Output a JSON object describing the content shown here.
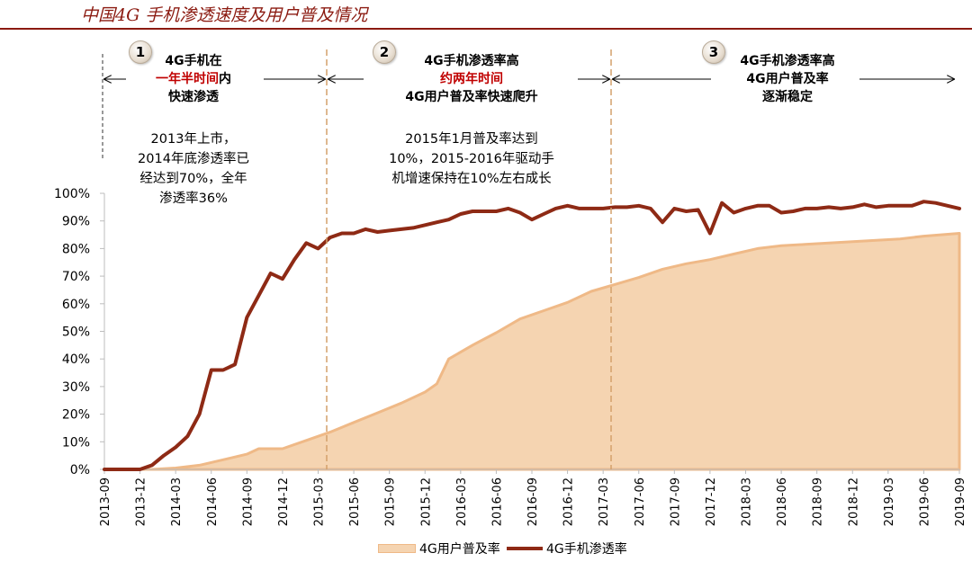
{
  "header": {
    "title": "中国4G 手机渗透速度及用户普及情况"
  },
  "phases": [
    {
      "number": "1",
      "lines": [
        [
          {
            "text": "4G手机在",
            "red": false
          }
        ],
        [
          {
            "text": "一年半时间",
            "red": true
          },
          {
            "text": "内",
            "red": false
          }
        ],
        [
          {
            "text": "快速渗透",
            "red": false
          }
        ]
      ],
      "note": [
        "2013年上市，",
        "2014年底渗透率已",
        "经达到70%，全年",
        "渗透率36%"
      ]
    },
    {
      "number": "2",
      "lines": [
        [
          {
            "text": "4G手机渗透率高",
            "red": false
          }
        ],
        [
          {
            "text": "约两年时间",
            "red": true
          }
        ],
        [
          {
            "text": "4G用户普及率快速爬升",
            "red": false
          }
        ]
      ],
      "note": [
        "2015年1月普及率达到",
        "10%，2015-2016年驱动手",
        "机增速保持在10%左右成长"
      ]
    },
    {
      "number": "3",
      "lines": [
        [
          {
            "text": "4G手机渗透率高",
            "red": false
          }
        ],
        [
          {
            "text": "4G用户普及率",
            "red": false
          }
        ],
        [
          {
            "text": "逐渐稳定",
            "red": false
          }
        ]
      ],
      "note": []
    }
  ],
  "colors": {
    "area_fill": "#f5d4b1",
    "area_stroke": "#efb987",
    "line": "#8e2a15",
    "accent": "#8b1a10",
    "highlight": "#c00000"
  },
  "chart_data": {
    "type": "line",
    "title": "",
    "ylim": [
      0,
      100
    ],
    "yticks": [
      "0%",
      "10%",
      "20%",
      "30%",
      "40%",
      "50%",
      "60%",
      "70%",
      "80%",
      "90%",
      "100%"
    ],
    "xticks": [
      "2013-09",
      "2013-12",
      "2014-03",
      "2014-06",
      "2014-09",
      "2014-12",
      "2015-03",
      "2015-06",
      "2015-09",
      "2015-12",
      "2016-03",
      "2016-06",
      "2016-09",
      "2016-12",
      "2017-03",
      "2017-06",
      "2017-09",
      "2017-12",
      "2018-03",
      "2018-06",
      "2018-09",
      "2018-12",
      "2019-03",
      "2019-06",
      "2019-09"
    ],
    "legend_position": "bottom",
    "series": [
      {
        "name": "4G用户普及率",
        "kind": "area",
        "x": [
          "2013-09",
          "2014-01",
          "2014-03",
          "2014-05",
          "2014-07",
          "2014-09",
          "2014-10",
          "2014-12",
          "2015-02",
          "2015-04",
          "2015-06",
          "2015-08",
          "2015-10",
          "2015-12",
          "2016-01",
          "2016-02",
          "2016-04",
          "2016-06",
          "2016-08",
          "2016-10",
          "2016-12",
          "2017-02",
          "2017-04",
          "2017-06",
          "2017-08",
          "2017-10",
          "2017-12",
          "2018-02",
          "2018-04",
          "2018-06",
          "2018-08",
          "2018-10",
          "2018-12",
          "2019-02",
          "2019-04",
          "2019-06",
          "2019-09"
        ],
        "values": [
          0,
          0,
          0.5,
          1.5,
          3.5,
          5.5,
          7.5,
          7.5,
          10.5,
          13.5,
          17,
          20.5,
          24,
          28,
          31,
          40,
          45,
          49.5,
          54.5,
          57.5,
          60.5,
          64.5,
          67,
          69.5,
          72.5,
          74.5,
          76,
          78,
          80,
          81,
          81.5,
          82,
          82.5,
          83,
          83.5,
          84.5,
          85.5
        ]
      },
      {
        "name": "4G手机渗透率",
        "kind": "line",
        "x": [
          "2013-09",
          "2013-12",
          "2014-01",
          "2014-02",
          "2014-03",
          "2014-04",
          "2014-05",
          "2014-06",
          "2014-07",
          "2014-08",
          "2014-09",
          "2014-10",
          "2014-11",
          "2014-12",
          "2015-01",
          "2015-02",
          "2015-03",
          "2015-04",
          "2015-05",
          "2015-06",
          "2015-07",
          "2015-08",
          "2015-09",
          "2015-10",
          "2015-11",
          "2015-12",
          "2016-01",
          "2016-02",
          "2016-03",
          "2016-04",
          "2016-05",
          "2016-06",
          "2016-07",
          "2016-08",
          "2016-09",
          "2016-10",
          "2016-11",
          "2016-12",
          "2017-01",
          "2017-02",
          "2017-03",
          "2017-04",
          "2017-05",
          "2017-06",
          "2017-07",
          "2017-08",
          "2017-09",
          "2017-10",
          "2017-11",
          "2017-12",
          "2018-01",
          "2018-02",
          "2018-03",
          "2018-04",
          "2018-05",
          "2018-06",
          "2018-07",
          "2018-08",
          "2018-09",
          "2018-10",
          "2018-11",
          "2018-12",
          "2019-01",
          "2019-02",
          "2019-03",
          "2019-04",
          "2019-05",
          "2019-06",
          "2019-07",
          "2019-08",
          "2019-09"
        ],
        "values": [
          0,
          0,
          1.5,
          5,
          8,
          12,
          20,
          36,
          36,
          38,
          55,
          63,
          71,
          69,
          76,
          82,
          80,
          84,
          85.5,
          85.5,
          87,
          86,
          86.5,
          87,
          87.5,
          88.5,
          89.5,
          90.5,
          92.5,
          93.5,
          93.5,
          93.5,
          94.5,
          93,
          90.5,
          92.5,
          94.5,
          95.5,
          94.5,
          94.5,
          94.5,
          95,
          95,
          95.5,
          94.5,
          89.5,
          94.5,
          93.5,
          94,
          85.5,
          96.5,
          93,
          94.5,
          95.5,
          95.5,
          93,
          93.5,
          94.5,
          94.5,
          95,
          94.5,
          95,
          96,
          95,
          95.5,
          95.5,
          95.5,
          97,
          96.5,
          95.5,
          94.5
        ]
      }
    ]
  }
}
